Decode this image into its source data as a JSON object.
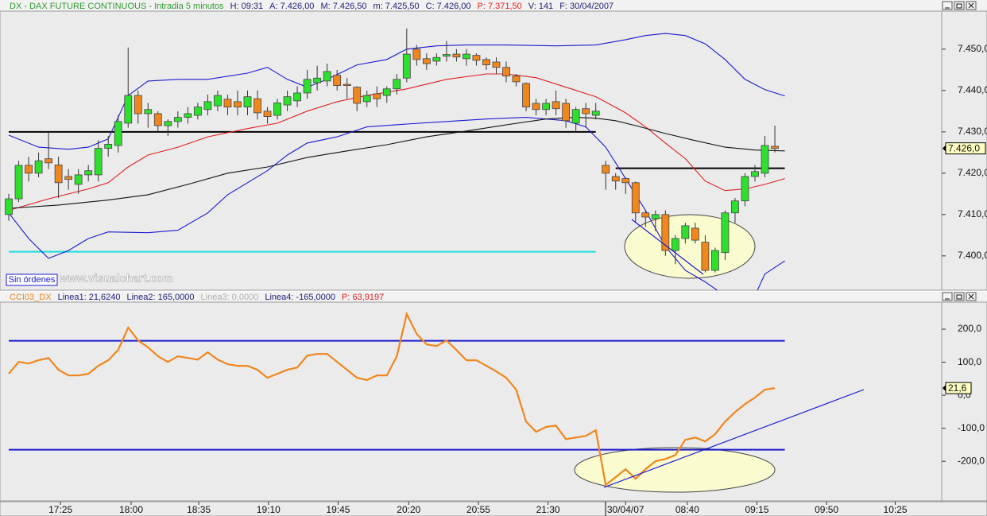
{
  "status": "Sin órdenes",
  "watermark": "www.visualchart.com",
  "chart_data": [
    {
      "type": "candlestick",
      "header": [
        {
          "text": "DX - DAX FUTURE CONTINUOUS - Intradia 5 minutos",
          "color": "#2f9a2f"
        },
        {
          "text": "H: 09:31",
          "color": "#20207a"
        },
        {
          "text": "A: 7.426,00",
          "color": "#20207a"
        },
        {
          "text": "M: 7.426,50",
          "color": "#20207a"
        },
        {
          "text": "m: 7.425,50",
          "color": "#20207a"
        },
        {
          "text": "C: 7.426,00",
          "color": "#20207a"
        },
        {
          "text": "P: 7.371,50",
          "color": "#e02020"
        },
        {
          "text": "V: 141",
          "color": "#20207a"
        },
        {
          "text": "F: 30/04/2007",
          "color": "#20207a"
        }
      ],
      "x": [
        0,
        1,
        2,
        3,
        4,
        5,
        6,
        7,
        8,
        9,
        10,
        11,
        12,
        13,
        14,
        15,
        16,
        17,
        18,
        19,
        20,
        21,
        22,
        23,
        24,
        25,
        26,
        27,
        28,
        29,
        30,
        31,
        32,
        33,
        34,
        35,
        36,
        37,
        38,
        39,
        40,
        41,
        42,
        43,
        44,
        45,
        46,
        47,
        48,
        49,
        50,
        51,
        52,
        53,
        54,
        55,
        56,
        57,
        58,
        59,
        60,
        61,
        62,
        63,
        64,
        65,
        66,
        67,
        68,
        69,
        70,
        71,
        72,
        73,
        74,
        75,
        76,
        77
      ],
      "open": [
        7410.0,
        7413.8,
        7421.9,
        7420.0,
        7423.5,
        7422.0,
        7419.2,
        7417.3,
        7419.6,
        7419.6,
        7426.0,
        7426.7,
        7432.1,
        7438.8,
        7434.4,
        7434.4,
        7431.5,
        7432.5,
        7433.5,
        7434.0,
        7435.4,
        7436.3,
        7437.9,
        7437.3,
        7436.0,
        7438.0,
        7435.0,
        7434.0,
        7436.5,
        7437.5,
        7439.4,
        7441.9,
        7442.3,
        7443.7,
        7441.5,
        7440.8,
        7437.3,
        7439.2,
        7438.8,
        7440.4,
        7443.0,
        7450.0,
        7447.7,
        7447.1,
        7448.3,
        7448.8,
        7447.7,
        7448.5,
        7447.5,
        7446.9,
        7445.6,
        7443.5,
        7441.7,
        7436.9,
        7435.4,
        7437.3,
        7436.9,
        7432.1,
        7435.6,
        7434.0,
        7421.9,
        7419.2,
        7418.7,
        7417.7,
        7410.4,
        7409.0,
        7410.0,
        7401.3,
        7404.2,
        7406.7,
        7403.3,
        7396.5,
        7400.8,
        7410.4,
        7413.3,
        7419.2,
        7420.0,
        7426.5
      ],
      "high": [
        7415,
        7423,
        7424,
        7425,
        7430,
        7424,
        7421,
        7421,
        7422,
        7428,
        7429,
        7434,
        7450.4,
        7440,
        7437,
        7435,
        7433,
        7435,
        7436,
        7437,
        7439,
        7440,
        7439,
        7440,
        7440,
        7440,
        7436,
        7438,
        7440,
        7441,
        7445,
        7446,
        7446.5,
        7445,
        7443,
        7441,
        7440,
        7441,
        7441,
        7444,
        7455,
        7451,
        7449,
        7449,
        7452,
        7450,
        7450,
        7449,
        7448,
        7448,
        7447,
        7444,
        7442,
        7438,
        7438,
        7440,
        7438,
        7436,
        7437,
        7437,
        7423,
        7420,
        7419,
        7418,
        7411,
        7411,
        7411,
        7405,
        7408,
        7408,
        7405,
        7402,
        7411,
        7414,
        7420,
        7422,
        7429,
        7431.5
      ],
      "low": [
        7408.5,
        7413,
        7418,
        7419,
        7421,
        7414,
        7416,
        7415,
        7418,
        7418,
        7424,
        7425,
        7431,
        7432,
        7431,
        7430,
        7429,
        7431,
        7432,
        7433,
        7434,
        7435,
        7434,
        7434,
        7434,
        7433,
        7432,
        7433,
        7435,
        7436,
        7438,
        7440,
        7441,
        7440,
        7438,
        7435,
        7436,
        7436,
        7437,
        7439,
        7442,
        7446,
        7445,
        7446,
        7447,
        7447,
        7446,
        7446,
        7445,
        7444,
        7442,
        7441,
        7435,
        7434,
        7434,
        7434,
        7431,
        7430,
        7431,
        7433,
        7416,
        7416,
        7415,
        7408,
        7407,
        7406,
        7400,
        7398,
        7403,
        7403,
        7396,
        7396,
        7399,
        7408,
        7412,
        7418,
        7419,
        7425
      ],
      "close": [
        7413.8,
        7421.9,
        7420.0,
        7423.0,
        7422.5,
        7417.7,
        7418.5,
        7419.6,
        7420.6,
        7426.0,
        7427.0,
        7432.5,
        7438.8,
        7434.4,
        7435.4,
        7431.5,
        7432.5,
        7433.5,
        7434.4,
        7436.0,
        7437.3,
        7438.8,
        7436.0,
        7436.0,
        7438.5,
        7434.6,
        7433.7,
        7437.0,
        7438.5,
        7439.4,
        7442.7,
        7443.0,
        7444.6,
        7441.2,
        7441.2,
        7436.9,
        7438.8,
        7438.0,
        7440.4,
        7442.7,
        7448.8,
        7447.5,
        7446.5,
        7448.0,
        7448.7,
        7448.1,
        7448.8,
        7447.3,
        7446.2,
        7445.6,
        7443.5,
        7442.1,
        7436.0,
        7435.4,
        7436.9,
        7435.6,
        7432.7,
        7435.4,
        7434.4,
        7435.0,
        7420.0,
        7418.1,
        7417.7,
        7410.4,
        7409.4,
        7410.0,
        7401.3,
        7404.2,
        7407.3,
        7403.8,
        7396.5,
        7401.3,
        7410.4,
        7413.3,
        7419.2,
        7420.4,
        7426.7,
        7426.0
      ],
      "up_color": "#2ee02e",
      "down_color": "#f0861e",
      "series": [
        {
          "color": "#1a1ad0",
          "x": [
            0,
            3,
            6,
            8,
            10,
            12,
            14,
            17,
            20,
            24,
            26,
            28,
            30,
            32,
            35,
            38,
            40,
            43,
            46,
            50,
            55,
            59,
            62,
            64,
            66,
            68,
            70,
            72,
            74,
            76,
            78
          ],
          "values": [
            7429.2,
            7426.3,
            7425.8,
            7426.3,
            7428.3,
            7438.8,
            7442.3,
            7442.7,
            7442.7,
            7444.2,
            7445.6,
            7442.7,
            7440.8,
            7442.7,
            7446.2,
            7447.5,
            7450,
            7450.8,
            7451,
            7451,
            7450.8,
            7451,
            7452.3,
            7453.3,
            7453.8,
            7453.3,
            7451.3,
            7447.5,
            7442.7,
            7440.2,
            7438.7
          ]
        },
        {
          "color": "#1a1ad0",
          "x": [
            0,
            2,
            4,
            6,
            8,
            10,
            14,
            17,
            20,
            22,
            24,
            26,
            28,
            30,
            33,
            36,
            40,
            44,
            48,
            52,
            56,
            58,
            60,
            62,
            64,
            66,
            68,
            70,
            72,
            75,
            76,
            78
          ],
          "values": [
            7410.4,
            7404.2,
            7399.4,
            7401.3,
            7404.2,
            7405.8,
            7405.6,
            7406.2,
            7410.4,
            7414.8,
            7417.7,
            7420.6,
            7424.4,
            7427.3,
            7428.8,
            7431.2,
            7431.9,
            7432.5,
            7433.1,
            7433.5,
            7432.7,
            7431.2,
            7426.3,
            7418.7,
            7411,
            7402.3,
            7396.5,
            7393.7,
            7390.4,
            7390.4,
            7395.6,
            7398.8
          ]
        },
        {
          "color": "#e02020",
          "x": [
            0,
            4,
            8,
            10,
            12,
            14,
            17,
            20,
            24,
            27,
            30,
            33,
            36,
            40,
            44,
            48,
            50,
            53,
            56,
            59,
            62,
            64,
            66,
            68,
            70,
            72,
            74,
            76,
            78
          ],
          "values": [
            7411,
            7413.8,
            7416.2,
            7417.7,
            7421.5,
            7424.4,
            7426.3,
            7428.8,
            7430.8,
            7432.1,
            7435,
            7437.3,
            7438.8,
            7440.4,
            7442.7,
            7444,
            7444,
            7443.1,
            7440.8,
            7438.5,
            7434.6,
            7431.2,
            7427.3,
            7423.5,
            7418.1,
            7415.8,
            7416.2,
            7417.3,
            7418.7
          ]
        },
        {
          "color": "#111111",
          "x": [
            0,
            5,
            10,
            14,
            18,
            22,
            26,
            30,
            34,
            38,
            42,
            46,
            50,
            54,
            57,
            59,
            61,
            63,
            66,
            69,
            72,
            75,
            78
          ],
          "values": [
            7411.5,
            7412.3,
            7413.5,
            7414.8,
            7417.3,
            7420,
            7421.5,
            7423.8,
            7425.4,
            7426.9,
            7428.8,
            7430.2,
            7431.7,
            7433.1,
            7433.5,
            7433.3,
            7432.7,
            7431.5,
            7429.6,
            7427.9,
            7426.3,
            7425.6,
            7425.4
          ]
        }
      ],
      "hlines": [
        {
          "value": 7430,
          "from": 0,
          "to": 59,
          "color": "#000000"
        },
        {
          "value": 7421.2,
          "from": 61,
          "to": 78,
          "color": "#000000"
        },
        {
          "value": 7401,
          "from": 0,
          "to": 59,
          "color": "#19dede"
        }
      ],
      "last_label": {
        "value": 7426,
        "label": "7.426,0"
      },
      "xlim": [
        -0.88,
        93.77
      ],
      "ylim": [
        7391.7,
        7459.2
      ],
      "yticks": [
        {
          "value": 7400,
          "label": "7.400,0"
        },
        {
          "value": 7410,
          "label": "7.410,0"
        },
        {
          "value": 7420,
          "label": "7.420,0"
        },
        {
          "value": 7430,
          "label": "7.430,0"
        },
        {
          "value": 7440,
          "label": "7.440,0"
        },
        {
          "value": 7450,
          "label": "7.450,0"
        }
      ]
    },
    {
      "type": "line",
      "header": [
        {
          "text": "CCI03_DX",
          "color": "#f0861e"
        },
        {
          "text": "Linea1: 21,6240",
          "color": "#20207a"
        },
        {
          "text": "Linea2: 165,0000",
          "color": "#20207a"
        },
        {
          "text": "Linea3: 0,0000",
          "color": "#b0b0b0"
        },
        {
          "text": "Linea4: -165,0000",
          "color": "#20207a"
        },
        {
          "text": "P: 63,9197",
          "color": "#e02020"
        }
      ],
      "color": "#f0861e",
      "x": [
        0,
        1,
        2,
        3,
        4,
        5,
        6,
        7,
        8,
        9,
        10,
        11,
        12,
        13,
        14,
        15,
        16,
        17,
        18,
        19,
        20,
        21,
        22,
        23,
        24,
        25,
        26,
        27,
        28,
        29,
        30,
        31,
        32,
        33,
        34,
        35,
        36,
        37,
        38,
        39,
        40,
        41,
        42,
        43,
        44,
        45,
        46,
        47,
        48,
        49,
        50,
        51,
        52,
        53,
        54,
        55,
        56,
        57,
        58,
        59,
        60,
        61,
        62,
        63,
        64,
        65,
        66,
        67,
        68,
        69,
        70,
        71,
        72,
        73,
        74,
        75,
        76,
        77
      ],
      "values": [
        65,
        101,
        96,
        106,
        113,
        77,
        60,
        60,
        65,
        89,
        106,
        137,
        205,
        166,
        145,
        118,
        101,
        118,
        113,
        108,
        130,
        108,
        94,
        89,
        89,
        77,
        53,
        65,
        77,
        84,
        120,
        125,
        125,
        101,
        77,
        53,
        46,
        60,
        60,
        118,
        246,
        186,
        154,
        149,
        166,
        137,
        106,
        106,
        89,
        72,
        53,
        17,
        -80,
        -111,
        -96,
        -92,
        -133,
        -128,
        -123,
        -106,
        -272,
        -248,
        -224,
        -253,
        -224,
        -200,
        -193,
        -181,
        -135,
        -128,
        -140,
        -118,
        -80,
        -51,
        -27,
        -7,
        17,
        21.624
      ],
      "hlines": [
        {
          "value": 165,
          "from": 0,
          "to": 78,
          "color": "#1a1ad0"
        },
        {
          "value": -165,
          "from": 0,
          "to": 78,
          "color": "#1a1ad0"
        }
      ],
      "last_label": {
        "value": 21.624,
        "label": "21,6"
      },
      "xlim": [
        -0.88,
        93.77
      ],
      "ylim": [
        -320,
        282
      ],
      "yticks": [
        {
          "value": -200,
          "label": "-200,0"
        },
        {
          "value": -100,
          "label": "-100,0"
        },
        {
          "value": 0,
          "label": "0,0"
        },
        {
          "value": 100,
          "label": "100,0"
        },
        {
          "value": 200,
          "label": "200,0"
        }
      ],
      "xticks": [
        {
          "value": 5.2,
          "label": "17:25"
        },
        {
          "value": 12.3,
          "label": "18:00"
        },
        {
          "value": 19.1,
          "label": "18:35"
        },
        {
          "value": 26.1,
          "label": "19:10"
        },
        {
          "value": 33.1,
          "label": "19:45"
        },
        {
          "value": 40.2,
          "label": "20:20"
        },
        {
          "value": 47.2,
          "label": "20:55"
        },
        {
          "value": 54.2,
          "label": "21:30"
        },
        {
          "value": 62.0,
          "label": "30/04/07"
        },
        {
          "value": 68.2,
          "label": "08:40"
        },
        {
          "value": 75.2,
          "label": "09:15"
        },
        {
          "value": 82.2,
          "label": "09:50"
        },
        {
          "value": 89.1,
          "label": "10:25"
        }
      ]
    }
  ]
}
